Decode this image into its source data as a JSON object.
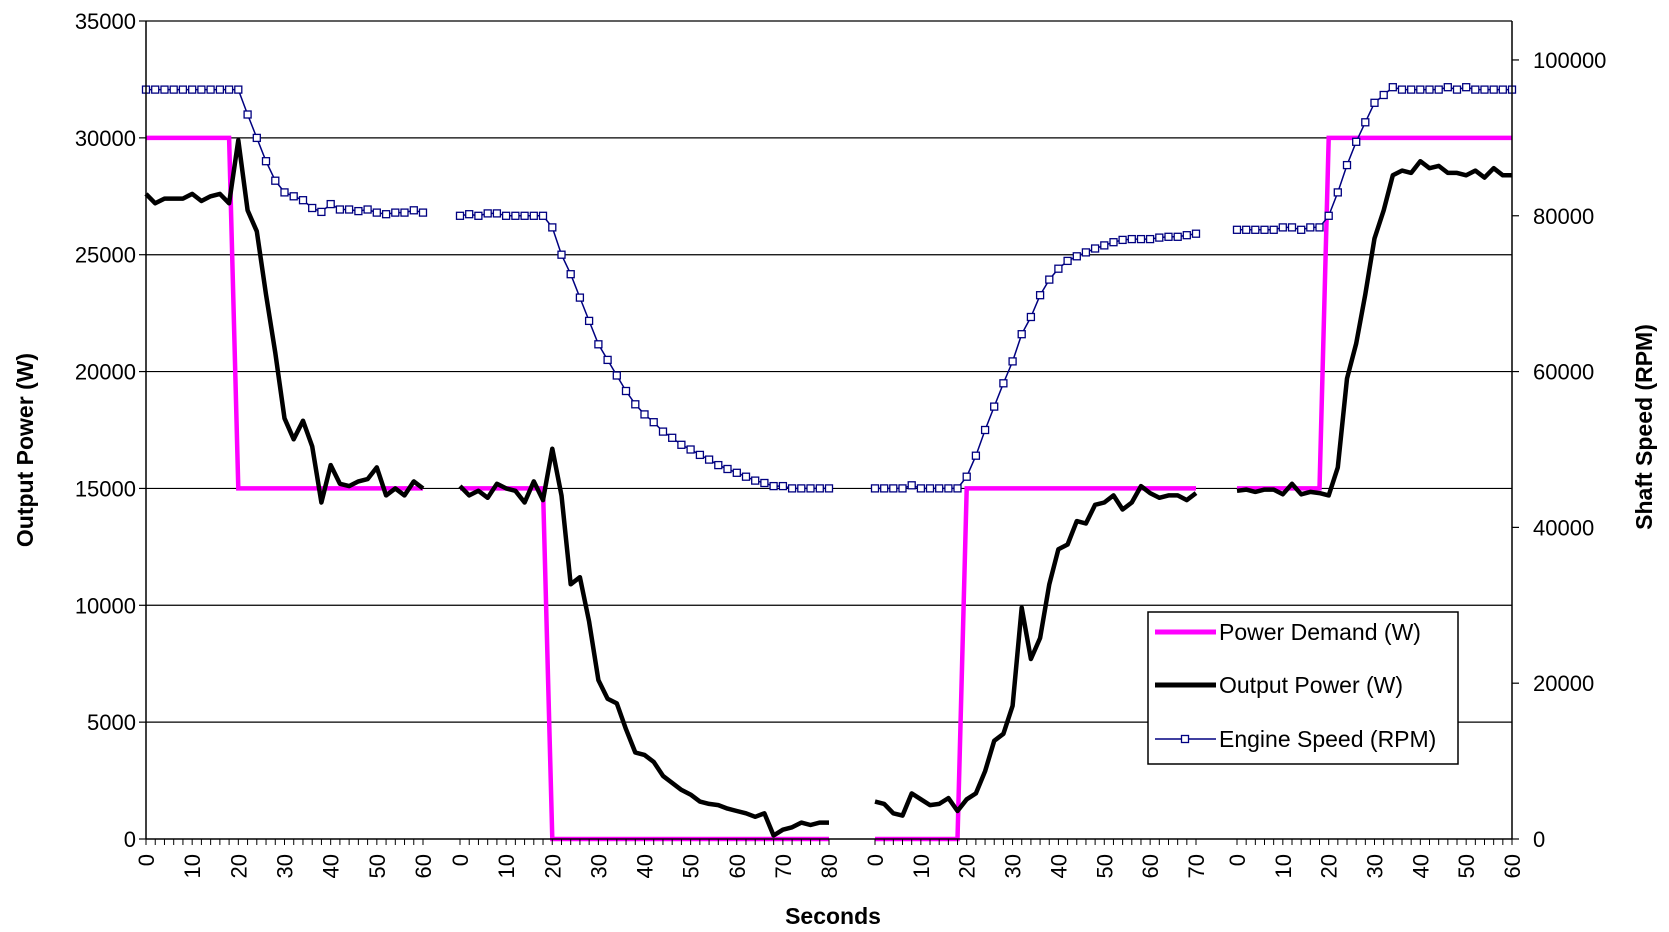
{
  "chart_data": {
    "type": "line",
    "xlabel": "Seconds",
    "ylabel_left": "Output Power (W)",
    "ylabel_right": "Shaft Speed (RPM)",
    "ylim_left": [
      0,
      35000
    ],
    "ylim_right": [
      0,
      105000
    ],
    "yticks_left": [
      0,
      5000,
      10000,
      15000,
      20000,
      25000,
      30000,
      35000
    ],
    "yticks_right": [
      0,
      20000,
      40000,
      60000,
      80000,
      100000
    ],
    "grid": "horizontal",
    "legend_position": "center-right",
    "colors": {
      "demand": "#ff00ff",
      "output": "#000000",
      "speed": "#000080"
    },
    "segments": [
      {
        "x_max": 60,
        "xticks": [
          0,
          10,
          20,
          30,
          40,
          50,
          60
        ],
        "demand": [
          [
            0,
            30000
          ],
          [
            18,
            30000
          ],
          [
            20,
            15000
          ],
          [
            60,
            15000
          ]
        ],
        "output": [
          [
            0,
            27600
          ],
          [
            2,
            27200
          ],
          [
            4,
            27400
          ],
          [
            6,
            27400
          ],
          [
            8,
            27400
          ],
          [
            10,
            27600
          ],
          [
            12,
            27300
          ],
          [
            14,
            27500
          ],
          [
            16,
            27600
          ],
          [
            18,
            27200
          ],
          [
            20,
            29900
          ],
          [
            22,
            26900
          ],
          [
            24,
            26000
          ],
          [
            26,
            23300
          ],
          [
            28,
            20800
          ],
          [
            30,
            18000
          ],
          [
            32,
            17100
          ],
          [
            34,
            17900
          ],
          [
            36,
            16800
          ],
          [
            38,
            14400
          ],
          [
            40,
            16000
          ],
          [
            42,
            15200
          ],
          [
            44,
            15100
          ],
          [
            46,
            15300
          ],
          [
            48,
            15400
          ],
          [
            50,
            15900
          ],
          [
            52,
            14700
          ],
          [
            54,
            15000
          ],
          [
            56,
            14700
          ],
          [
            58,
            15300
          ],
          [
            60,
            15000
          ]
        ],
        "speed": [
          [
            0,
            96200
          ],
          [
            2,
            96200
          ],
          [
            4,
            96200
          ],
          [
            6,
            96200
          ],
          [
            8,
            96200
          ],
          [
            10,
            96200
          ],
          [
            12,
            96200
          ],
          [
            14,
            96200
          ],
          [
            16,
            96200
          ],
          [
            18,
            96200
          ],
          [
            20,
            96200
          ],
          [
            22,
            93000
          ],
          [
            24,
            90000
          ],
          [
            26,
            87000
          ],
          [
            28,
            84500
          ],
          [
            30,
            83000
          ],
          [
            32,
            82500
          ],
          [
            34,
            82000
          ],
          [
            36,
            81000
          ],
          [
            38,
            80500
          ],
          [
            40,
            81500
          ],
          [
            42,
            80800
          ],
          [
            44,
            80800
          ],
          [
            46,
            80600
          ],
          [
            48,
            80800
          ],
          [
            50,
            80400
          ],
          [
            52,
            80200
          ],
          [
            54,
            80400
          ],
          [
            56,
            80400
          ],
          [
            58,
            80700
          ],
          [
            60,
            80400
          ]
        ]
      },
      {
        "x_max": 80,
        "xticks": [
          0,
          10,
          20,
          30,
          40,
          50,
          60,
          70,
          80
        ],
        "demand": [
          [
            0,
            15000
          ],
          [
            18,
            15000
          ],
          [
            20,
            0
          ],
          [
            80,
            0
          ]
        ],
        "output": [
          [
            0,
            15100
          ],
          [
            2,
            14700
          ],
          [
            4,
            14900
          ],
          [
            6,
            14600
          ],
          [
            8,
            15200
          ],
          [
            10,
            15000
          ],
          [
            12,
            14900
          ],
          [
            14,
            14400
          ],
          [
            16,
            15300
          ],
          [
            18,
            14500
          ],
          [
            20,
            16700
          ],
          [
            22,
            14700
          ],
          [
            24,
            10900
          ],
          [
            26,
            11200
          ],
          [
            28,
            9300
          ],
          [
            30,
            6800
          ],
          [
            32,
            6000
          ],
          [
            34,
            5800
          ],
          [
            36,
            4700
          ],
          [
            38,
            3700
          ],
          [
            40,
            3600
          ],
          [
            42,
            3300
          ],
          [
            44,
            2700
          ],
          [
            46,
            2400
          ],
          [
            48,
            2100
          ],
          [
            50,
            1900
          ],
          [
            52,
            1600
          ],
          [
            54,
            1500
          ],
          [
            56,
            1450
          ],
          [
            58,
            1300
          ],
          [
            60,
            1200
          ],
          [
            62,
            1100
          ],
          [
            64,
            950
          ],
          [
            66,
            1100
          ],
          [
            68,
            150
          ],
          [
            70,
            400
          ],
          [
            72,
            500
          ],
          [
            74,
            700
          ],
          [
            76,
            600
          ],
          [
            78,
            700
          ],
          [
            80,
            700
          ]
        ],
        "speed": [
          [
            0,
            80000
          ],
          [
            2,
            80200
          ],
          [
            4,
            80000
          ],
          [
            6,
            80300
          ],
          [
            8,
            80300
          ],
          [
            10,
            80000
          ],
          [
            12,
            80000
          ],
          [
            14,
            80000
          ],
          [
            16,
            80000
          ],
          [
            18,
            80000
          ],
          [
            20,
            78500
          ],
          [
            22,
            75000
          ],
          [
            24,
            72500
          ],
          [
            26,
            69500
          ],
          [
            28,
            66500
          ],
          [
            30,
            63500
          ],
          [
            32,
            61500
          ],
          [
            34,
            59500
          ],
          [
            36,
            57500
          ],
          [
            38,
            55800
          ],
          [
            40,
            54500
          ],
          [
            42,
            53500
          ],
          [
            44,
            52300
          ],
          [
            46,
            51500
          ],
          [
            48,
            50600
          ],
          [
            50,
            50000
          ],
          [
            52,
            49300
          ],
          [
            54,
            48700
          ],
          [
            56,
            48000
          ],
          [
            58,
            47500
          ],
          [
            60,
            47000
          ],
          [
            62,
            46500
          ],
          [
            64,
            46000
          ],
          [
            66,
            45700
          ],
          [
            68,
            45300
          ],
          [
            70,
            45300
          ],
          [
            72,
            45000
          ],
          [
            74,
            45000
          ],
          [
            76,
            45000
          ],
          [
            78,
            45000
          ],
          [
            80,
            45000
          ]
        ]
      },
      {
        "x_max": 70,
        "xticks": [
          0,
          10,
          20,
          30,
          40,
          50,
          60,
          70
        ],
        "demand": [
          [
            0,
            0
          ],
          [
            18,
            0
          ],
          [
            20,
            15000
          ],
          [
            70,
            15000
          ]
        ],
        "output": [
          [
            0,
            1600
          ],
          [
            2,
            1500
          ],
          [
            4,
            1100
          ],
          [
            6,
            1000
          ],
          [
            8,
            1950
          ],
          [
            10,
            1700
          ],
          [
            12,
            1450
          ],
          [
            14,
            1500
          ],
          [
            16,
            1750
          ],
          [
            18,
            1200
          ],
          [
            20,
            1700
          ],
          [
            22,
            1950
          ],
          [
            24,
            2900
          ],
          [
            26,
            4200
          ],
          [
            28,
            4500
          ],
          [
            30,
            5700
          ],
          [
            32,
            9900
          ],
          [
            34,
            7700
          ],
          [
            36,
            8600
          ],
          [
            38,
            10900
          ],
          [
            40,
            12400
          ],
          [
            42,
            12600
          ],
          [
            44,
            13600
          ],
          [
            46,
            13500
          ],
          [
            48,
            14300
          ],
          [
            50,
            14400
          ],
          [
            52,
            14700
          ],
          [
            54,
            14100
          ],
          [
            56,
            14400
          ],
          [
            58,
            15100
          ],
          [
            60,
            14800
          ],
          [
            62,
            14600
          ],
          [
            64,
            14700
          ],
          [
            66,
            14700
          ],
          [
            68,
            14500
          ],
          [
            70,
            14800
          ]
        ],
        "speed": [
          [
            0,
            45000
          ],
          [
            2,
            45000
          ],
          [
            4,
            45000
          ],
          [
            6,
            45000
          ],
          [
            8,
            45400
          ],
          [
            10,
            45000
          ],
          [
            12,
            45000
          ],
          [
            14,
            45000
          ],
          [
            16,
            45000
          ],
          [
            18,
            45000
          ],
          [
            20,
            46500
          ],
          [
            22,
            49200
          ],
          [
            24,
            52500
          ],
          [
            26,
            55500
          ],
          [
            28,
            58500
          ],
          [
            30,
            61300
          ],
          [
            32,
            64800
          ],
          [
            34,
            67000
          ],
          [
            36,
            69800
          ],
          [
            38,
            71800
          ],
          [
            40,
            73200
          ],
          [
            42,
            74200
          ],
          [
            44,
            74800
          ],
          [
            46,
            75300
          ],
          [
            48,
            75800
          ],
          [
            50,
            76200
          ],
          [
            52,
            76600
          ],
          [
            54,
            76900
          ],
          [
            56,
            77000
          ],
          [
            58,
            77000
          ],
          [
            60,
            77000
          ],
          [
            62,
            77200
          ],
          [
            64,
            77300
          ],
          [
            66,
            77300
          ],
          [
            68,
            77500
          ],
          [
            70,
            77700
          ]
        ]
      },
      {
        "x_max": 60,
        "xticks": [
          0,
          10,
          20,
          30,
          40,
          50,
          60
        ],
        "demand": [
          [
            0,
            15000
          ],
          [
            18,
            15000
          ],
          [
            20,
            30000
          ],
          [
            60,
            30000
          ]
        ],
        "output": [
          [
            0,
            14900
          ],
          [
            2,
            14950
          ],
          [
            4,
            14850
          ],
          [
            6,
            14950
          ],
          [
            8,
            14950
          ],
          [
            10,
            14750
          ],
          [
            12,
            15200
          ],
          [
            14,
            14750
          ],
          [
            16,
            14850
          ],
          [
            18,
            14800
          ],
          [
            20,
            14700
          ],
          [
            22,
            15900
          ],
          [
            24,
            19700
          ],
          [
            26,
            21200
          ],
          [
            28,
            23300
          ],
          [
            30,
            25700
          ],
          [
            32,
            26900
          ],
          [
            34,
            28400
          ],
          [
            36,
            28600
          ],
          [
            38,
            28500
          ],
          [
            40,
            29000
          ],
          [
            42,
            28700
          ],
          [
            44,
            28800
          ],
          [
            46,
            28500
          ],
          [
            48,
            28500
          ],
          [
            50,
            28400
          ],
          [
            52,
            28600
          ],
          [
            54,
            28300
          ],
          [
            56,
            28700
          ],
          [
            58,
            28400
          ],
          [
            60,
            28400
          ]
        ],
        "speed": [
          [
            0,
            78200
          ],
          [
            2,
            78200
          ],
          [
            4,
            78200
          ],
          [
            6,
            78200
          ],
          [
            8,
            78200
          ],
          [
            10,
            78500
          ],
          [
            12,
            78500
          ],
          [
            14,
            78200
          ],
          [
            16,
            78500
          ],
          [
            18,
            78500
          ],
          [
            20,
            80000
          ],
          [
            22,
            83000
          ],
          [
            24,
            86500
          ],
          [
            26,
            89500
          ],
          [
            28,
            92000
          ],
          [
            30,
            94500
          ],
          [
            32,
            95500
          ],
          [
            34,
            96500
          ],
          [
            36,
            96200
          ],
          [
            38,
            96200
          ],
          [
            40,
            96200
          ],
          [
            42,
            96200
          ],
          [
            44,
            96200
          ],
          [
            46,
            96500
          ],
          [
            48,
            96200
          ],
          [
            50,
            96500
          ],
          [
            52,
            96200
          ],
          [
            54,
            96200
          ],
          [
            56,
            96200
          ],
          [
            58,
            96200
          ],
          [
            60,
            96200
          ]
        ]
      }
    ],
    "legend": [
      {
        "key": "demand",
        "label": "Power Demand (W)"
      },
      {
        "key": "output",
        "label": "Output Power (W)"
      },
      {
        "key": "speed",
        "label": "Engine Speed (RPM)"
      }
    ]
  }
}
